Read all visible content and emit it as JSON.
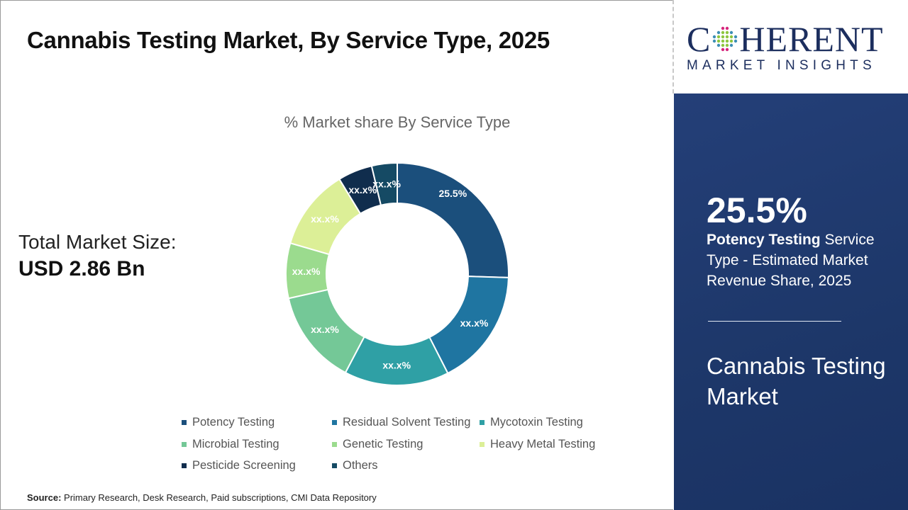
{
  "title": "Cannabis Testing Market, By Service Type, 2025",
  "total_market": {
    "label": "Total Market Size:",
    "value": "USD 2.86 Bn"
  },
  "source": {
    "label": "Source:",
    "text": "Primary Research, Desk Research, Paid subscriptions, CMI Data Repository"
  },
  "logo": {
    "text_top": "COHERENT",
    "text_bottom": "MARKET INSIGHTS"
  },
  "highlight": {
    "value": "25.5%",
    "segment": "Potency Testing",
    "description": "Service Type - Estimated Market Revenue Share, 2025",
    "market_name": "Cannabis Testing Market"
  },
  "colors": {
    "panel": "#1f3a6e",
    "accent_text": "#ffffff"
  },
  "chart_data": {
    "type": "pie",
    "variant": "donut",
    "title": "% Market share By Service Type",
    "categories": [
      "Potency Testing",
      "Residual Solvent Testing",
      "Mycotoxin Testing",
      "Microbial Testing",
      "Genetic Testing",
      "Heavy Metal Testing",
      "Pesticide Screening",
      "Others"
    ],
    "values": [
      25.5,
      17.0,
      15.2,
      13.8,
      8.0,
      11.8,
      5.0,
      3.7
    ],
    "labels": [
      "25.5%",
      "xx.x%",
      "xx.x%",
      "xx.x%",
      "xx.x%",
      "xx.x%",
      "xx.x%",
      "xx.x%"
    ],
    "colors": [
      "#1b4f7c",
      "#1f75a1",
      "#2fa0a5",
      "#74c897",
      "#9bdb8e",
      "#dcef97",
      "#102d4d",
      "#154a64"
    ],
    "legend_position": "bottom"
  }
}
